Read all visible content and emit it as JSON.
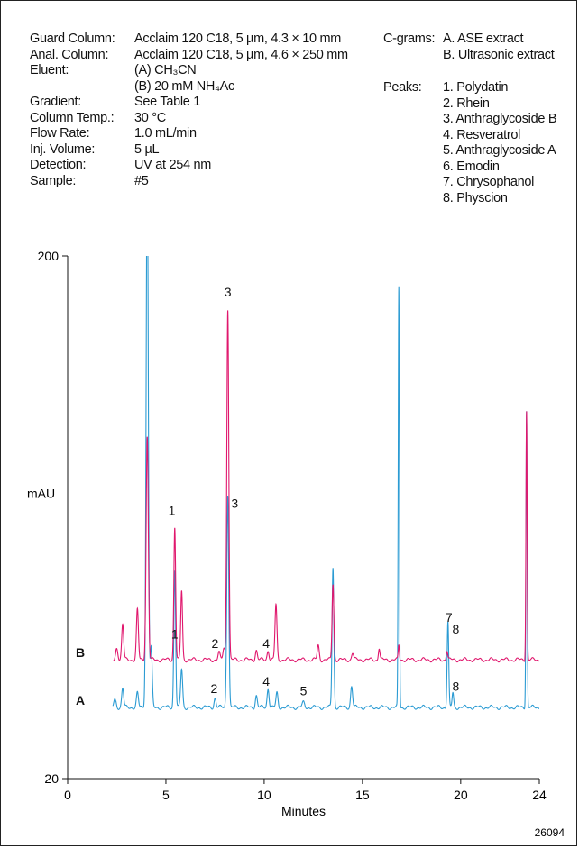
{
  "conditions": [
    {
      "label": "Guard Column:",
      "value": "Acclaim 120 C18, 5 µm, 4.3 × 10 mm"
    },
    {
      "label": "Anal. Column:",
      "value": "Acclaim 120 C18, 5 µm, 4.6 × 250 mm"
    },
    {
      "label": "Eluent:",
      "value": "(A) CH₃CN"
    },
    {
      "label": "",
      "value": "(B) 20 mM NH₄Ac"
    },
    {
      "label": "Gradient:",
      "value": "See Table 1"
    },
    {
      "label": "Column Temp.:",
      "value": "30 °C"
    },
    {
      "label": "Flow Rate:",
      "value": "1.0 mL/min"
    },
    {
      "label": "Inj. Volume:",
      "value": "5 µL"
    },
    {
      "label": "Detection:",
      "value": "UV at 254 nm"
    },
    {
      "label": "Sample:",
      "value": "#5"
    }
  ],
  "cgrams": {
    "label": "C-grams:",
    "items": [
      "A. ASE extract",
      "B. Ultrasonic extract"
    ]
  },
  "peaks": {
    "label": "Peaks:",
    "items": [
      "1. Polydatin",
      "2. Rhein",
      "3. Anthraglycoside B",
      "4. Resveratrol",
      "5. Anthraglycoside A",
      "6. Emodin",
      "7. Chrysophanol",
      "8. Physcion"
    ]
  },
  "figure_id": "26094",
  "chart_data": {
    "type": "line",
    "xlabel": "Minutes",
    "ylabel": "mAU",
    "xlim": [
      0,
      24
    ],
    "ylim": [
      -20,
      200
    ],
    "x_ticks": [
      0,
      5,
      10,
      15,
      20,
      24
    ],
    "x_tick_labels": [
      "0",
      "5",
      "10",
      "15",
      "20",
      "24"
    ],
    "y_tick_labels": [
      "200",
      "–20"
    ],
    "y_tick_values": [
      200,
      -20
    ],
    "colors": {
      "A": "#2b9bd3",
      "B": "#e0176d"
    },
    "series": [
      {
        "name": "A",
        "color": "#2b9bd3",
        "baseline": 10,
        "peaks": [
          [
            2.4,
            4,
            0.06
          ],
          [
            2.8,
            8,
            0.05
          ],
          [
            3.55,
            6,
            0.05
          ],
          [
            4.05,
            230,
            0.055
          ],
          [
            4.25,
            25,
            0.05
          ],
          [
            5.45,
            58,
            0.045
          ],
          [
            5.8,
            16,
            0.05
          ],
          [
            7.5,
            4,
            0.05
          ],
          [
            8.15,
            90,
            0.05
          ],
          [
            9.6,
            5,
            0.05
          ],
          [
            10.2,
            8,
            0.05
          ],
          [
            10.65,
            6,
            0.05
          ],
          [
            12,
            2,
            0.06
          ],
          [
            13.5,
            59,
            0.045
          ],
          [
            14.45,
            9,
            0.05
          ],
          [
            16.85,
            177,
            0.03
          ],
          [
            19.35,
            36,
            0.04
          ],
          [
            19.6,
            6,
            0.04
          ],
          [
            23.35,
            125,
            0.03
          ]
        ],
        "labels": [
          {
            "t": "1",
            "x": 5.45,
            "y": 39
          },
          {
            "t": "2",
            "x": 7.45,
            "y": 16
          },
          {
            "t": "3",
            "x": 8.5,
            "y": 94
          },
          {
            "t": "4",
            "x": 10.1,
            "y": 19
          },
          {
            "t": "5",
            "x": 12.0,
            "y": 15
          },
          {
            "t": "8",
            "x": 19.75,
            "y": 17
          }
        ]
      },
      {
        "name": "B",
        "color": "#e0176d",
        "baseline": 30,
        "peaks": [
          [
            2.5,
            5,
            0.06
          ],
          [
            2.8,
            15,
            0.05
          ],
          [
            3.55,
            21,
            0.05
          ],
          [
            4.05,
            94,
            0.055
          ],
          [
            5.45,
            56,
            0.045
          ],
          [
            5.8,
            29,
            0.045
          ],
          [
            7.7,
            3,
            0.05
          ],
          [
            7.95,
            5,
            0.05
          ],
          [
            8.15,
            148,
            0.05
          ],
          [
            9.6,
            4,
            0.05
          ],
          [
            10.2,
            4,
            0.05
          ],
          [
            10.6,
            23,
            0.05
          ],
          [
            12.75,
            6,
            0.05
          ],
          [
            13.5,
            32,
            0.045
          ],
          [
            14.5,
            3,
            0.05
          ],
          [
            15.85,
            5,
            0.04
          ],
          [
            16.85,
            6,
            0.03
          ],
          [
            19.3,
            4,
            0.04
          ],
          [
            23.35,
            105,
            0.03
          ]
        ],
        "labels": [
          {
            "t": "1",
            "x": 5.3,
            "y": 91
          },
          {
            "t": "2",
            "x": 7.5,
            "y": 35
          },
          {
            "t": "3",
            "x": 8.15,
            "y": 183
          },
          {
            "t": "4",
            "x": 10.1,
            "y": 35
          },
          {
            "t": "7",
            "x": 19.4,
            "y": 46
          },
          {
            "t": "8",
            "x": 19.75,
            "y": 41
          }
        ]
      }
    ]
  }
}
